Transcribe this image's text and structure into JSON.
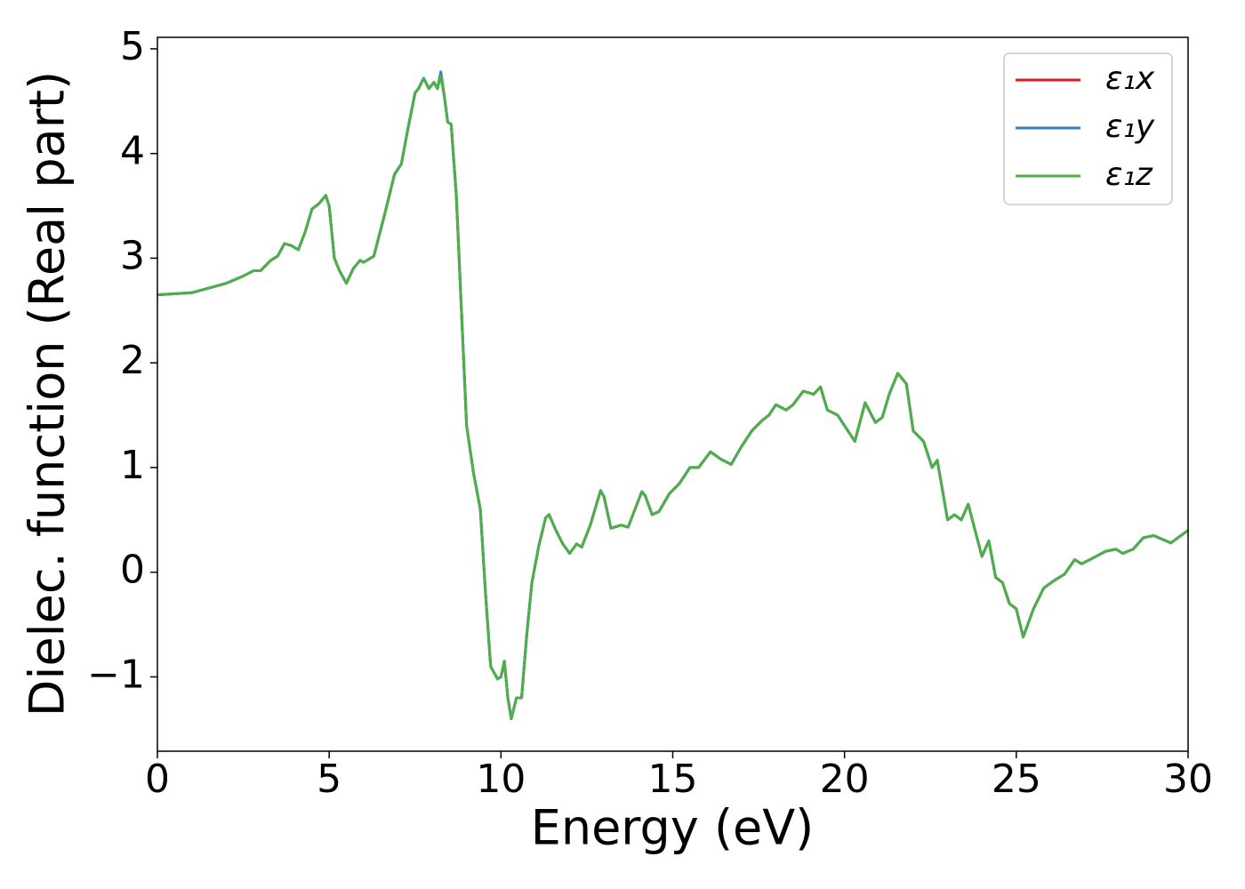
{
  "chart_data": {
    "type": "line",
    "xlabel": "Energy (eV)",
    "ylabel": "Dielec. function (Real part)",
    "xlim": [
      0,
      30
    ],
    "xticks": [
      0,
      5,
      10,
      15,
      20,
      25,
      30
    ],
    "ylim": [
      -1.71,
      5.11
    ],
    "yticks": [
      {
        "value": -1,
        "label": "−1"
      },
      0,
      1,
      2,
      3,
      4,
      5
    ],
    "legend": "upper right",
    "grid": false,
    "x": [
      0,
      1,
      2,
      2.5,
      2.8,
      3.0,
      3.3,
      3.5,
      3.7,
      3.9,
      4.1,
      4.3,
      4.5,
      4.7,
      4.9,
      5.0,
      5.15,
      5.3,
      5.5,
      5.7,
      5.9,
      6.0,
      6.2,
      6.3,
      6.6,
      6.9,
      7.1,
      7.3,
      7.5,
      7.6,
      7.75,
      7.9,
      8.05,
      8.15,
      8.25,
      8.35,
      8.45,
      8.55,
      8.7,
      8.85,
      9.0,
      9.2,
      9.4,
      9.55,
      9.7,
      9.9,
      10.0,
      10.1,
      10.2,
      10.3,
      10.45,
      10.6,
      10.75,
      10.9,
      11.1,
      11.3,
      11.4,
      11.6,
      11.8,
      12.0,
      12.2,
      12.35,
      12.6,
      12.9,
      13.0,
      13.2,
      13.5,
      13.7,
      13.9,
      14.1,
      14.2,
      14.4,
      14.6,
      14.9,
      15.2,
      15.5,
      15.75,
      16.1,
      16.4,
      16.7,
      17.0,
      17.3,
      17.6,
      17.8,
      18.0,
      18.3,
      18.5,
      18.8,
      19.1,
      19.3,
      19.5,
      19.8,
      20.0,
      20.3,
      20.6,
      20.9,
      21.1,
      21.3,
      21.55,
      21.8,
      22.0,
      22.3,
      22.55,
      22.7,
      23.0,
      23.2,
      23.4,
      23.6,
      23.8,
      24.0,
      24.2,
      24.4,
      24.6,
      24.8,
      25.0,
      25.2,
      25.5,
      25.8,
      26.1,
      26.4,
      26.7,
      26.9,
      27.2,
      27.6,
      27.9,
      28.1,
      28.4,
      28.7,
      29.0,
      29.5,
      30
    ],
    "series": [
      {
        "name": "ε₁x",
        "color": "#e41a1c",
        "values": [
          2.65,
          2.67,
          2.76,
          2.83,
          2.88,
          2.88,
          2.98,
          3.02,
          3.14,
          3.12,
          3.08,
          3.25,
          3.47,
          3.52,
          3.6,
          3.5,
          3.0,
          2.88,
          2.76,
          2.9,
          2.98,
          2.96,
          3.0,
          3.02,
          3.4,
          3.8,
          3.9,
          4.25,
          4.58,
          4.62,
          4.72,
          4.62,
          4.68,
          4.62,
          4.76,
          4.55,
          4.3,
          4.28,
          3.6,
          2.5,
          1.4,
          0.95,
          0.6,
          -0.2,
          -0.9,
          -1.02,
          -1.0,
          -0.85,
          -1.2,
          -1.4,
          -1.2,
          -1.2,
          -0.6,
          -0.1,
          0.25,
          0.52,
          0.55,
          0.4,
          0.27,
          0.18,
          0.27,
          0.24,
          0.45,
          0.78,
          0.72,
          0.42,
          0.45,
          0.43,
          0.6,
          0.77,
          0.73,
          0.55,
          0.58,
          0.75,
          0.85,
          1.0,
          1.0,
          1.15,
          1.08,
          1.03,
          1.2,
          1.35,
          1.45,
          1.5,
          1.6,
          1.55,
          1.6,
          1.73,
          1.7,
          1.77,
          1.55,
          1.5,
          1.4,
          1.25,
          1.62,
          1.43,
          1.48,
          1.7,
          1.9,
          1.8,
          1.35,
          1.25,
          1.0,
          1.07,
          0.5,
          0.55,
          0.5,
          0.65,
          0.4,
          0.15,
          0.3,
          -0.05,
          -0.1,
          -0.3,
          -0.35,
          -0.62,
          -0.35,
          -0.15,
          -0.08,
          -0.02,
          0.12,
          0.08,
          0.13,
          0.2,
          0.22,
          0.18,
          0.22,
          0.33,
          0.35,
          0.28,
          0.4
        ]
      },
      {
        "name": "ε₁y",
        "color": "#377eb8",
        "values": [
          2.65,
          2.67,
          2.76,
          2.83,
          2.88,
          2.88,
          2.98,
          3.02,
          3.14,
          3.12,
          3.08,
          3.25,
          3.47,
          3.52,
          3.6,
          3.5,
          3.0,
          2.88,
          2.76,
          2.9,
          2.98,
          2.96,
          3.0,
          3.02,
          3.4,
          3.8,
          3.9,
          4.25,
          4.58,
          4.62,
          4.72,
          4.62,
          4.68,
          4.62,
          4.78,
          4.55,
          4.3,
          4.28,
          3.6,
          2.5,
          1.4,
          0.95,
          0.6,
          -0.2,
          -0.9,
          -1.02,
          -1.0,
          -0.85,
          -1.2,
          -1.4,
          -1.2,
          -1.2,
          -0.6,
          -0.1,
          0.25,
          0.52,
          0.55,
          0.4,
          0.27,
          0.18,
          0.27,
          0.24,
          0.45,
          0.78,
          0.72,
          0.42,
          0.45,
          0.43,
          0.6,
          0.77,
          0.73,
          0.55,
          0.58,
          0.75,
          0.85,
          1.0,
          1.0,
          1.15,
          1.08,
          1.03,
          1.2,
          1.35,
          1.45,
          1.5,
          1.6,
          1.55,
          1.6,
          1.73,
          1.7,
          1.77,
          1.55,
          1.5,
          1.4,
          1.25,
          1.62,
          1.43,
          1.48,
          1.7,
          1.9,
          1.8,
          1.35,
          1.25,
          1.0,
          1.07,
          0.5,
          0.55,
          0.5,
          0.65,
          0.4,
          0.15,
          0.3,
          -0.05,
          -0.1,
          -0.3,
          -0.35,
          -0.62,
          -0.35,
          -0.15,
          -0.08,
          -0.02,
          0.12,
          0.08,
          0.13,
          0.2,
          0.22,
          0.18,
          0.22,
          0.33,
          0.35,
          0.28,
          0.4
        ]
      },
      {
        "name": "ε₁z",
        "color": "#4daf4a",
        "values": [
          2.65,
          2.67,
          2.76,
          2.83,
          2.88,
          2.88,
          2.98,
          3.02,
          3.14,
          3.12,
          3.08,
          3.25,
          3.47,
          3.52,
          3.6,
          3.5,
          3.0,
          2.88,
          2.76,
          2.9,
          2.98,
          2.96,
          3.0,
          3.02,
          3.4,
          3.8,
          3.9,
          4.25,
          4.58,
          4.62,
          4.72,
          4.62,
          4.68,
          4.62,
          4.74,
          4.55,
          4.3,
          4.28,
          3.6,
          2.5,
          1.4,
          0.95,
          0.6,
          -0.2,
          -0.9,
          -1.02,
          -1.0,
          -0.85,
          -1.2,
          -1.4,
          -1.2,
          -1.2,
          -0.6,
          -0.1,
          0.25,
          0.52,
          0.55,
          0.4,
          0.27,
          0.18,
          0.27,
          0.24,
          0.45,
          0.78,
          0.72,
          0.42,
          0.45,
          0.43,
          0.6,
          0.77,
          0.73,
          0.55,
          0.58,
          0.75,
          0.85,
          1.0,
          1.0,
          1.15,
          1.08,
          1.03,
          1.2,
          1.35,
          1.45,
          1.5,
          1.6,
          1.55,
          1.6,
          1.73,
          1.7,
          1.77,
          1.55,
          1.5,
          1.4,
          1.25,
          1.62,
          1.43,
          1.48,
          1.7,
          1.9,
          1.8,
          1.35,
          1.25,
          1.0,
          1.07,
          0.5,
          0.55,
          0.5,
          0.65,
          0.4,
          0.15,
          0.3,
          -0.05,
          -0.1,
          -0.3,
          -0.35,
          -0.62,
          -0.35,
          -0.15,
          -0.08,
          -0.02,
          0.12,
          0.08,
          0.13,
          0.2,
          0.22,
          0.18,
          0.22,
          0.33,
          0.35,
          0.28,
          0.4
        ]
      }
    ]
  }
}
